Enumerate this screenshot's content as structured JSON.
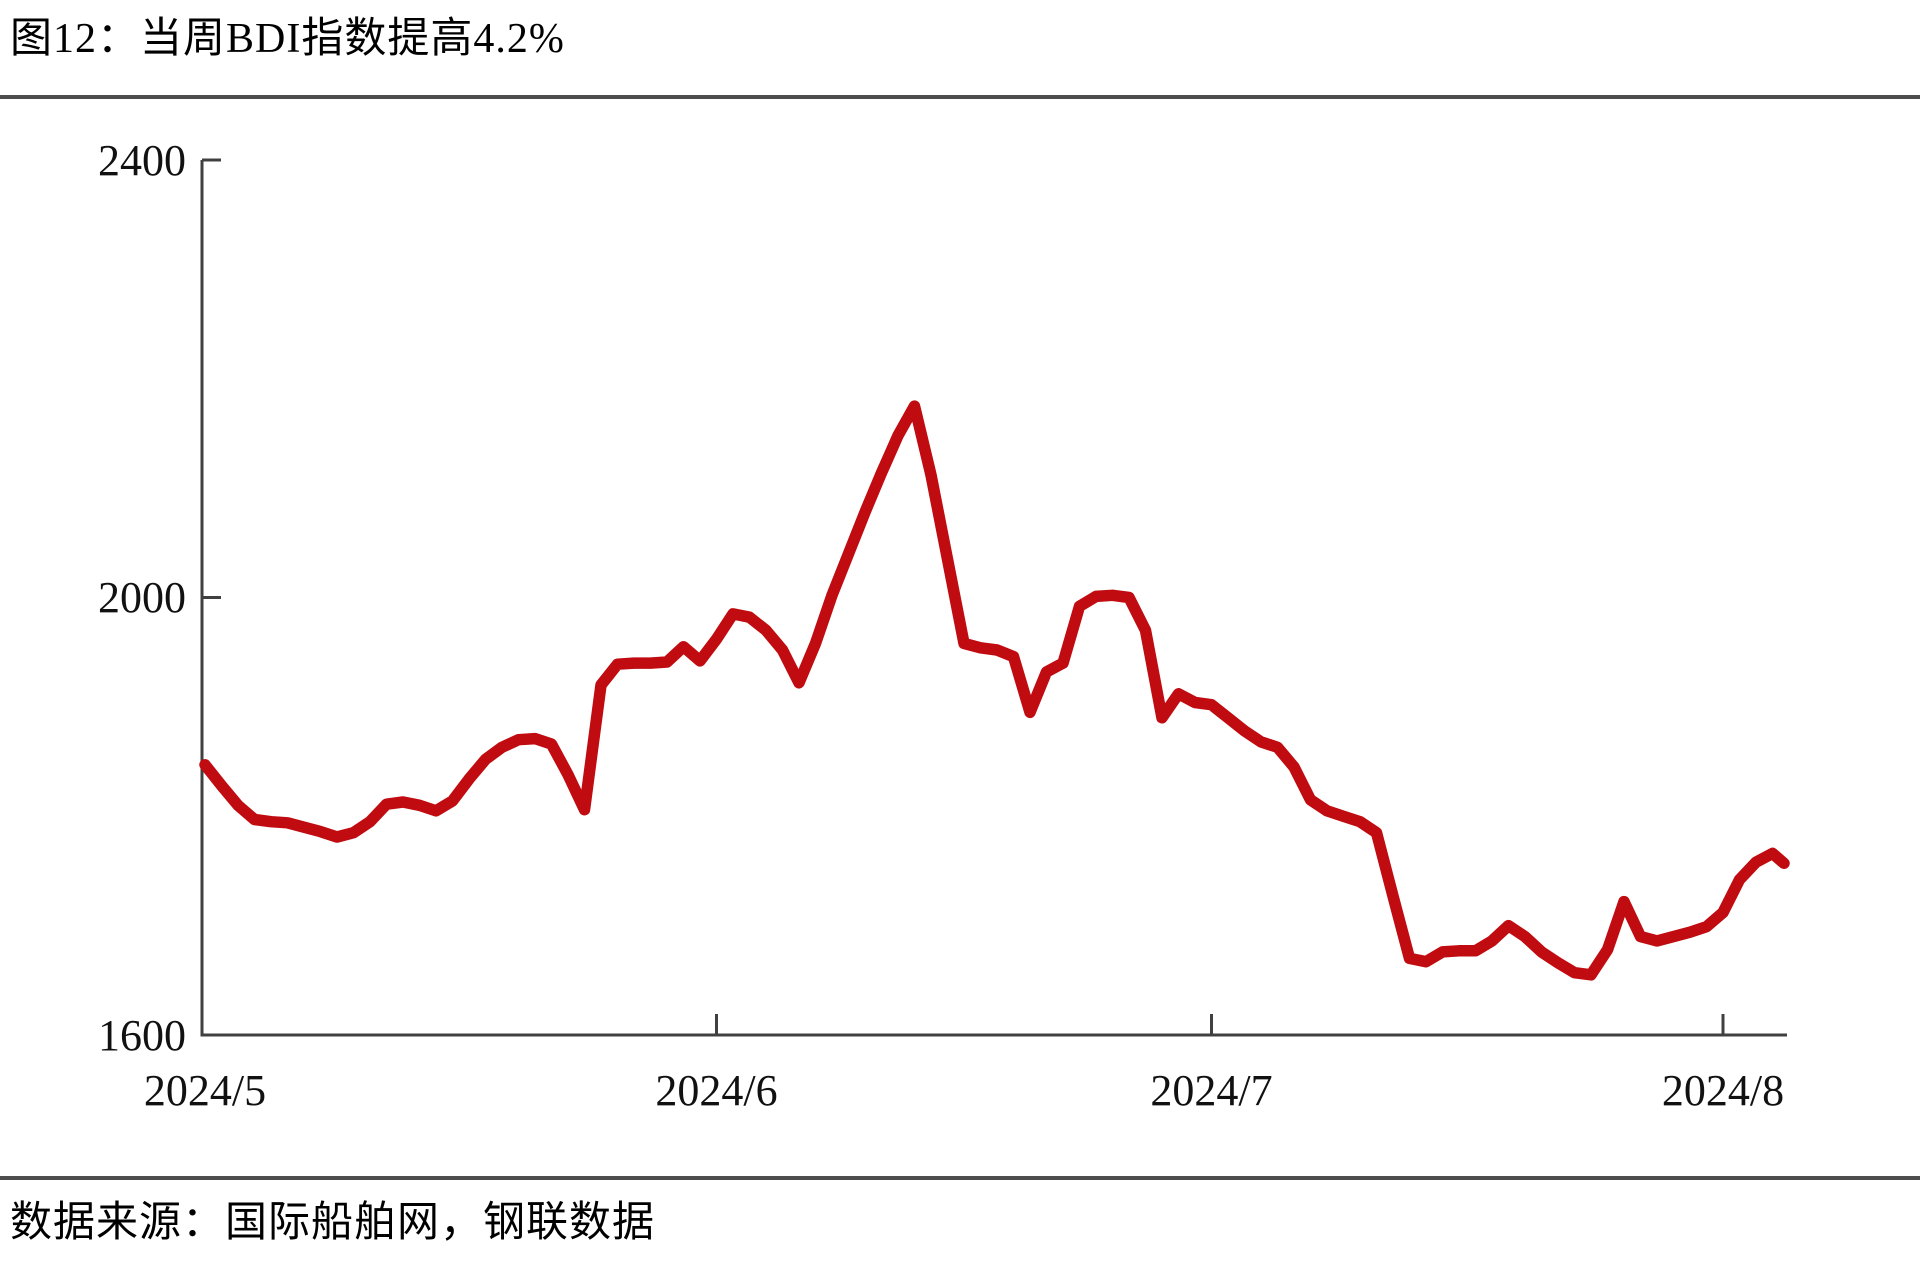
{
  "header": {
    "title": "图12：当周BDI指数提高4.2%"
  },
  "footer": {
    "source": "数据来源：国际船舶网，钢联数据"
  },
  "chart_data": {
    "type": "line",
    "title": "图12：当周BDI指数提高4.2%",
    "series_name": "BDI指数",
    "line_color": "#C00B10",
    "axis_color": "#404040",
    "grid": false,
    "legend": "none",
    "ylim": [
      1600,
      2400
    ],
    "y_tick_labels": [
      "2400",
      "2000",
      "1600"
    ],
    "y_tick_values": [
      2400,
      2000,
      1600
    ],
    "x_tick_labels": [
      "2024/5",
      "2024/6",
      "2024/7",
      "2024/8"
    ],
    "x_tick_dates": [
      "2024-05-01",
      "2024-06-01",
      "2024-07-01",
      "2024-08-01"
    ],
    "x_range": [
      "2024-05-01",
      "2024-08-05"
    ],
    "points": [
      [
        "2024-05-01",
        1847
      ],
      [
        "2024-05-02",
        1828
      ],
      [
        "2024-05-03",
        1810
      ],
      [
        "2024-05-04",
        1797
      ],
      [
        "2024-05-05",
        1795
      ],
      [
        "2024-05-06",
        1794
      ],
      [
        "2024-05-07",
        1790
      ],
      [
        "2024-05-08",
        1786
      ],
      [
        "2024-05-09",
        1781
      ],
      [
        "2024-05-10",
        1785
      ],
      [
        "2024-05-11",
        1795
      ],
      [
        "2024-05-12",
        1811
      ],
      [
        "2024-05-13",
        1813
      ],
      [
        "2024-05-14",
        1810
      ],
      [
        "2024-05-15",
        1805
      ],
      [
        "2024-05-16",
        1814
      ],
      [
        "2024-05-17",
        1834
      ],
      [
        "2024-05-18",
        1852
      ],
      [
        "2024-05-19",
        1863
      ],
      [
        "2024-05-20",
        1870
      ],
      [
        "2024-05-21",
        1871
      ],
      [
        "2024-05-22",
        1866
      ],
      [
        "2024-05-23",
        1838
      ],
      [
        "2024-05-24",
        1806
      ],
      [
        "2024-05-25",
        1920
      ],
      [
        "2024-05-26",
        1939
      ],
      [
        "2024-05-27",
        1940
      ],
      [
        "2024-05-28",
        1940
      ],
      [
        "2024-05-29",
        1941
      ],
      [
        "2024-05-30",
        1955
      ],
      [
        "2024-05-31",
        1942
      ],
      [
        "2024-06-01",
        1962
      ],
      [
        "2024-06-02",
        1985
      ],
      [
        "2024-06-03",
        1982
      ],
      [
        "2024-06-04",
        1970
      ],
      [
        "2024-06-05",
        1952
      ],
      [
        "2024-06-06",
        1922
      ],
      [
        "2024-06-07",
        1958
      ],
      [
        "2024-06-08",
        2002
      ],
      [
        "2024-06-09",
        2040
      ],
      [
        "2024-06-10",
        2078
      ],
      [
        "2024-06-11",
        2114
      ],
      [
        "2024-06-12",
        2148
      ],
      [
        "2024-06-13",
        2175
      ],
      [
        "2024-06-14",
        2112
      ],
      [
        "2024-06-15",
        2035
      ],
      [
        "2024-06-16",
        1958
      ],
      [
        "2024-06-17",
        1954
      ],
      [
        "2024-06-18",
        1952
      ],
      [
        "2024-06-19",
        1946
      ],
      [
        "2024-06-20",
        1895
      ],
      [
        "2024-06-21",
        1932
      ],
      [
        "2024-06-22",
        1940
      ],
      [
        "2024-06-23",
        1992
      ],
      [
        "2024-06-24",
        2001
      ],
      [
        "2024-06-25",
        2002
      ],
      [
        "2024-06-26",
        2000
      ],
      [
        "2024-06-27",
        1970
      ],
      [
        "2024-06-28",
        1890
      ],
      [
        "2024-06-29",
        1912
      ],
      [
        "2024-06-30",
        1904
      ],
      [
        "2024-07-01",
        1902
      ],
      [
        "2024-07-02",
        1890
      ],
      [
        "2024-07-03",
        1878
      ],
      [
        "2024-07-04",
        1868
      ],
      [
        "2024-07-05",
        1863
      ],
      [
        "2024-07-06",
        1845
      ],
      [
        "2024-07-07",
        1815
      ],
      [
        "2024-07-08",
        1805
      ],
      [
        "2024-07-09",
        1800
      ],
      [
        "2024-07-10",
        1795
      ],
      [
        "2024-07-11",
        1785
      ],
      [
        "2024-07-12",
        1727
      ],
      [
        "2024-07-13",
        1670
      ],
      [
        "2024-07-14",
        1667
      ],
      [
        "2024-07-15",
        1676
      ],
      [
        "2024-07-16",
        1677
      ],
      [
        "2024-07-17",
        1677
      ],
      [
        "2024-07-18",
        1686
      ],
      [
        "2024-07-19",
        1700
      ],
      [
        "2024-07-20",
        1690
      ],
      [
        "2024-07-21",
        1676
      ],
      [
        "2024-07-22",
        1666
      ],
      [
        "2024-07-23",
        1657
      ],
      [
        "2024-07-24",
        1655
      ],
      [
        "2024-07-25",
        1678
      ],
      [
        "2024-07-26",
        1722
      ],
      [
        "2024-07-27",
        1690
      ],
      [
        "2024-07-28",
        1686
      ],
      [
        "2024-07-29",
        1690
      ],
      [
        "2024-07-30",
        1694
      ],
      [
        "2024-07-31",
        1699
      ],
      [
        "2024-08-01",
        1712
      ],
      [
        "2024-08-02",
        1742
      ],
      [
        "2024-08-03",
        1758
      ],
      [
        "2024-08-04",
        1766
      ],
      [
        "2024-08-05",
        1757
      ]
    ]
  }
}
